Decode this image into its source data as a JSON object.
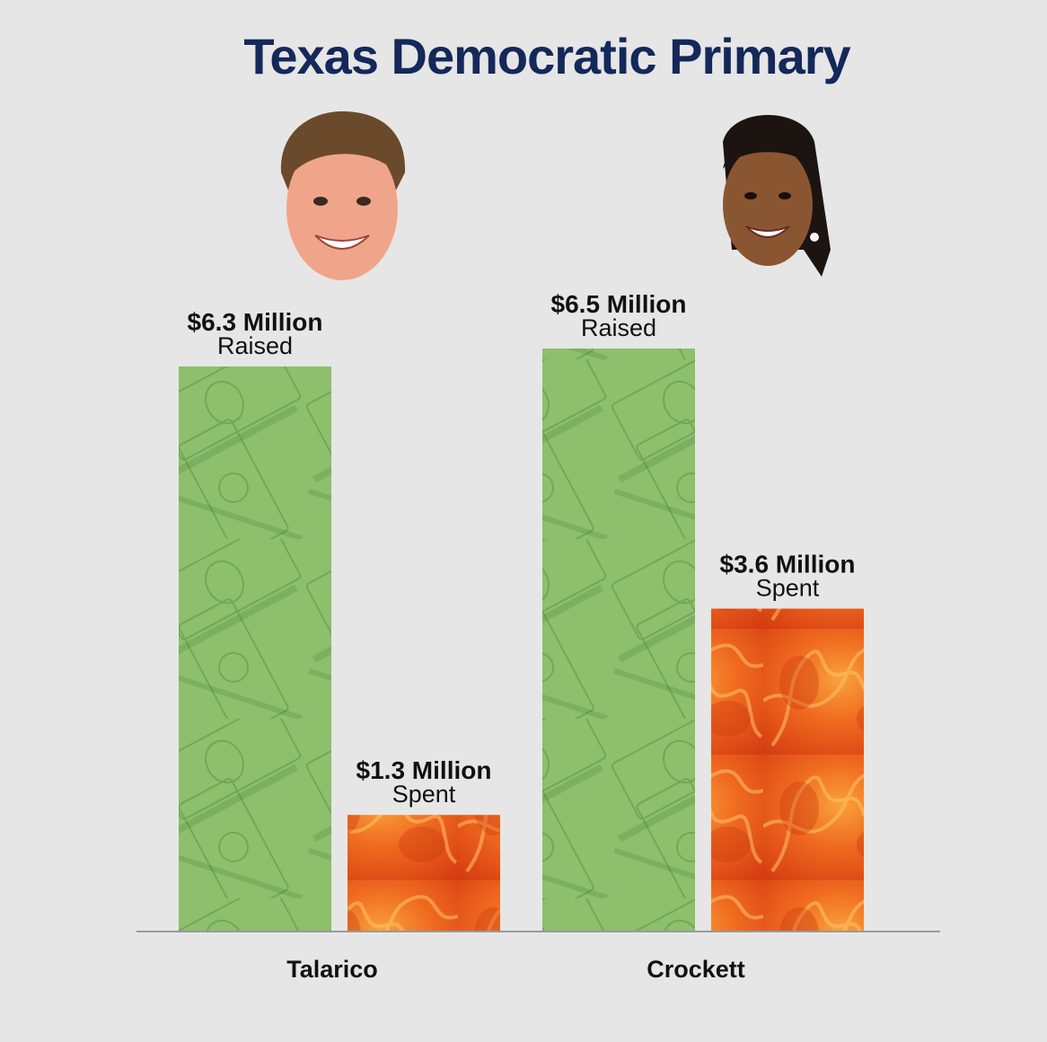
{
  "chart_data": {
    "type": "bar",
    "title": "Texas Democratic Primary",
    "categories": [
      "Talarico",
      "Crockett"
    ],
    "series": [
      {
        "name": "Raised",
        "values": [
          6.3,
          6.5
        ],
        "labels": [
          "$6.3 Million",
          "$6.5 Million"
        ]
      },
      {
        "name": "Spent",
        "values": [
          1.3,
          3.6
        ],
        "labels": [
          "$1.3 Million",
          "$3.6 Million"
        ]
      }
    ],
    "ylim": [
      0,
      6.5
    ],
    "grid": false,
    "colors": {
      "raised": "#8bbf6a",
      "spent": "#e8541c",
      "title": "#14285a",
      "background": "#e6e6e6"
    },
    "images": [
      "talarico-portrait",
      "crockett-portrait",
      "dollar-bill-texture",
      "flame-texture"
    ]
  }
}
